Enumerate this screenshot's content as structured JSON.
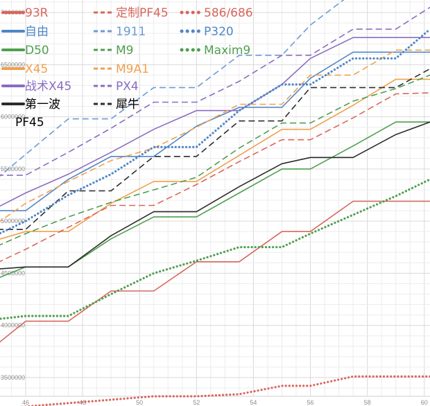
{
  "chart_data": {
    "type": "line",
    "title": "",
    "xlabel": "",
    "ylabel": "",
    "xlim": [
      45.1,
      60.2
    ],
    "ylim": [
      3320000,
      7120000
    ],
    "x_ticks": [
      46,
      48,
      50,
      52,
      54,
      56,
      58,
      60
    ],
    "x_tick_labels": [
      "46",
      "48",
      "50",
      "52",
      "54",
      "56",
      "58",
      "60"
    ],
    "y_ticks": [
      3500000,
      4000000,
      4500000,
      5000000,
      5500000,
      6000000,
      6500000,
      7000000
    ],
    "y_tick_labels": [
      "3500000",
      "4000000",
      "4500000",
      "5000000",
      "5500000",
      "6000000",
      "6500000",
      "7000000"
    ],
    "legend_position": "top-left",
    "series": [
      {
        "name": "93R",
        "color": "#d9665d",
        "style": "solid",
        "x": [
          45,
          46,
          47.5,
          49,
          50.5,
          52,
          53.5,
          55,
          56,
          57.5,
          59,
          60.2
        ],
        "values": [
          3820000,
          4040000,
          4040000,
          4330000,
          4330000,
          4610000,
          4610000,
          4900000,
          4900000,
          5190000,
          5190000,
          5190000
        ]
      },
      {
        "name": "自由",
        "color": "#4f86c6",
        "style": "solid",
        "x": [
          45,
          46,
          47.5,
          49,
          50.5,
          52,
          53.5,
          55,
          56,
          57.5,
          59,
          60.2
        ],
        "values": [
          5100000,
          5100000,
          5400000,
          5620000,
          5620000,
          5910000,
          6090000,
          6090000,
          6370000,
          6620000,
          6620000,
          6620000
        ]
      },
      {
        "name": "D50",
        "color": "#4f9e4f",
        "style": "solid",
        "x": [
          45,
          46,
          47.5,
          49,
          50.5,
          52,
          53.5,
          55,
          56,
          57.5,
          59,
          60.2
        ],
        "values": [
          4450000,
          4560000,
          4560000,
          4830000,
          5040000,
          5040000,
          5270000,
          5500000,
          5500000,
          5720000,
          5950000,
          5950000
        ]
      },
      {
        "name": "X45",
        "color": "#f0a04b",
        "style": "solid",
        "x": [
          45,
          46,
          47.5,
          49,
          50.5,
          52,
          53.5,
          55,
          56,
          57.5,
          59,
          60.2
        ],
        "values": [
          4820000,
          4900000,
          4900000,
          5170000,
          5380000,
          5380000,
          5630000,
          5880000,
          5880000,
          6110000,
          6360000,
          6360000
        ]
      },
      {
        "name": "战术X45",
        "color": "#8a6cc0",
        "style": "solid",
        "x": [
          45,
          46,
          47.5,
          49,
          50.5,
          52,
          53.5,
          55,
          56,
          57.5,
          59,
          60.2
        ],
        "values": [
          5130000,
          5270000,
          5450000,
          5660000,
          5880000,
          6060000,
          6060000,
          6310000,
          6560000,
          6760000,
          6760000,
          6760000
        ]
      },
      {
        "name": "第一波",
        "color": "#2b2b2b",
        "style": "solid",
        "x": [
          45,
          46,
          47.5,
          49,
          50.5,
          52,
          53.5,
          55,
          56,
          57.5,
          59,
          60.2
        ],
        "values": [
          4540000,
          4560000,
          4560000,
          4860000,
          5090000,
          5090000,
          5330000,
          5550000,
          5610000,
          5610000,
          5830000,
          5950000
        ]
      },
      {
        "name": "定制PF45",
        "color": "#d9665d",
        "style": "dashed",
        "x": [
          45,
          46,
          47.5,
          49,
          50.5,
          52,
          53.5,
          55,
          56,
          57.5,
          59,
          60.2
        ],
        "values": [
          4600000,
          4730000,
          4940000,
          5150000,
          5150000,
          5350000,
          5570000,
          5780000,
          5780000,
          5990000,
          6220000,
          6230000
        ]
      },
      {
        "name": "1911",
        "color": "#6a9ad6",
        "style": "dashed",
        "x": [
          45,
          46,
          47.5,
          49,
          50.5,
          52,
          53.5,
          55,
          56,
          57.5,
          59,
          60.2
        ],
        "values": [
          5410000,
          5640000,
          5980000,
          5980000,
          6280000,
          6280000,
          6590000,
          6590000,
          6880000,
          7190000,
          7190000,
          7190000
        ]
      },
      {
        "name": "M9",
        "color": "#4f9e4f",
        "style": "dashed",
        "x": [
          45,
          46,
          47.5,
          49,
          50.5,
          52,
          53.5,
          55,
          56,
          57.5,
          59,
          60.2
        ],
        "values": [
          4760000,
          4880000,
          5040000,
          5180000,
          5300000,
          5420000,
          5700000,
          5940000,
          5940000,
          6150000,
          6270000,
          6400000
        ]
      },
      {
        "name": "M9A1",
        "color": "#f0a04b",
        "style": "dashed",
        "x": [
          45,
          46,
          47.5,
          49,
          50.5,
          52,
          53.5,
          55,
          56,
          57.5,
          59,
          60.2
        ],
        "values": [
          4980000,
          5170000,
          5380000,
          5580000,
          5700000,
          5900000,
          6120000,
          6120000,
          6400000,
          6400000,
          6640000,
          6640000
        ]
      },
      {
        "name": "PX4",
        "color": "#8a6cc0",
        "style": "dashed",
        "x": [
          45,
          46,
          47.5,
          49,
          50.5,
          52,
          53.5,
          55,
          56,
          57.5,
          59,
          60.2
        ],
        "values": [
          5440000,
          5440000,
          5660000,
          5890000,
          6140000,
          6140000,
          6340000,
          6590000,
          6590000,
          6840000,
          6840000,
          7050000
        ]
      },
      {
        "name": "犀牛",
        "color": "#2b2b2b",
        "style": "dashed",
        "x": [
          45,
          46,
          47.5,
          49,
          50.5,
          52,
          53.5,
          55,
          56,
          57.5,
          59,
          60.2
        ],
        "values": [
          4920000,
          4920000,
          5290000,
          5290000,
          5620000,
          5620000,
          5960000,
          5960000,
          6280000,
          6280000,
          6280000,
          6460000
        ]
      },
      {
        "name": "586/686",
        "color": "#d9665d",
        "style": "dotted",
        "x": [
          45,
          50.5,
          52,
          53.5,
          55,
          56,
          57.5,
          59,
          60.2
        ],
        "values": [
          3200000,
          3320000,
          3320000,
          3340000,
          3420000,
          3420000,
          3510000,
          3510000,
          3510000
        ]
      },
      {
        "name": "P320",
        "color": "#4f86c6",
        "style": "dotted",
        "x": [
          45,
          46,
          47.5,
          49,
          50.5,
          52,
          53.5,
          55,
          56,
          57.5,
          59,
          60.2
        ],
        "values": [
          4870000,
          5000000,
          5250000,
          5450000,
          5710000,
          5710000,
          6060000,
          6310000,
          6310000,
          6560000,
          6560000,
          6840000
        ]
      },
      {
        "name": "Maxim9",
        "color": "#4f9e4f",
        "style": "dotted",
        "x": [
          45,
          46,
          47.5,
          49,
          50.5,
          52,
          53.5,
          55,
          56,
          57.5,
          59,
          60.2
        ],
        "values": [
          4060000,
          4090000,
          4090000,
          4300000,
          4500000,
          4620000,
          4750000,
          4750000,
          4880000,
          5060000,
          5240000,
          5400000
        ]
      }
    ],
    "legend_extra_label": "PF45"
  }
}
